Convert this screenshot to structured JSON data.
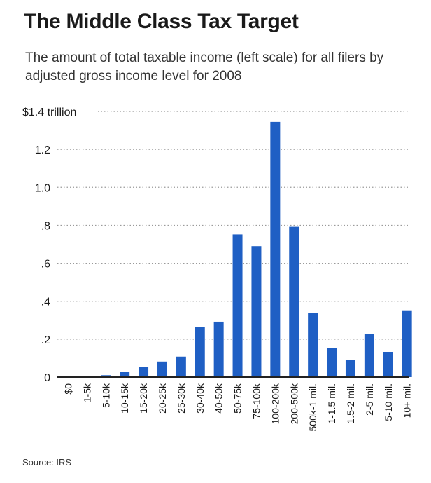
{
  "header": {
    "title": "The Middle Class Tax Target",
    "subtitle": "The amount of total taxable income (left scale) for all filers by adjusted gross income level for 2008"
  },
  "footer": {
    "source": "Source: IRS"
  },
  "colors": {
    "bar": "#1f5fc4",
    "grid": "#9a9a9a",
    "axis": "#222222"
  },
  "chart_data": {
    "type": "bar",
    "title": "The Middle Class Tax Target",
    "xlabel": "",
    "ylabel": "",
    "ylim": [
      0,
      1.4
    ],
    "grid": "dotted horizontal",
    "ytick_values": [
      0,
      0.2,
      0.4,
      0.6,
      0.8,
      1.0,
      1.2,
      1.4
    ],
    "ytick_labels": [
      "0",
      ".2",
      ".4",
      ".6",
      ".8",
      "1.0",
      "1.2",
      "$1.4 trillion"
    ],
    "categories": [
      "$0",
      "1-5k",
      "5-10k",
      "10-15k",
      "15-20k",
      "20-25k",
      "25-30k",
      "30-40k",
      "40-50k",
      "50-75k",
      "75-100k",
      "100-200k",
      "200-500k",
      "500k-1 mil.",
      "1-1.5 mil.",
      "1.5-2 mil.",
      "2-5 mil.",
      "5-10 mil.",
      "10+ mil."
    ],
    "values": [
      0.0,
      0.003,
      0.01,
      0.028,
      0.055,
      0.082,
      0.108,
      0.265,
      0.292,
      0.752,
      0.69,
      1.345,
      0.792,
      0.338,
      0.153,
      0.092,
      0.228,
      0.133,
      0.352
    ]
  }
}
